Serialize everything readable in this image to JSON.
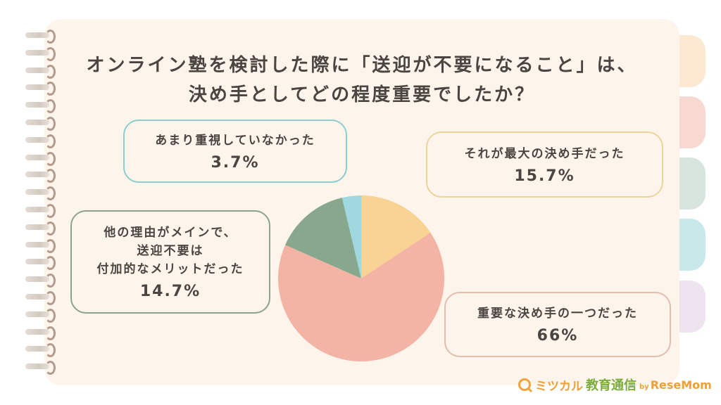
{
  "title": {
    "line1": "オンライン塾を検討した際に「送迎が不要になること」は、",
    "line2": "決め手としてどの程度重要でしたか？"
  },
  "tabs": [
    {
      "color": "#fde9d2"
    },
    {
      "color": "#f7d9d2"
    },
    {
      "color": "#d8e5df"
    },
    {
      "color": "#c9e8ea"
    },
    {
      "color": "#ede4ef"
    }
  ],
  "labels": [
    {
      "id": "not-important",
      "text": "あまり重視していなかった",
      "value": "3.7%",
      "border": "#8ccdd0"
    },
    {
      "id": "biggest-factor",
      "text": "それが最大の決め手だった",
      "value": "15.7%",
      "border": "#ecd39a"
    },
    {
      "id": "additional-merit",
      "text": "他の理由がメインで、\n送迎不要は\n付加的なメリットだった",
      "value": "14.7%",
      "border": "#8aa48e"
    },
    {
      "id": "one-of-factors",
      "text": "重要な決め手の一つだった",
      "value": "66%",
      "border": "#e3bcae"
    }
  ],
  "logo": {
    "part1": "ミツカル",
    "part2": "教育通信",
    "part3": "by",
    "part4": "ReseMom"
  },
  "chart_data": {
    "type": "pie",
    "title": "オンライン塾を検討した際に「送迎が不要になること」は、決め手としてどの程度重要でしたか？",
    "start_angle": "12 o'clock, clockwise",
    "categories": [
      "それが最大の決め手だった",
      "重要な決め手の一つだった",
      "他の理由がメインで、送迎不要は付加的なメリットだった",
      "あまり重視していなかった"
    ],
    "values": [
      15.7,
      66,
      14.7,
      3.7
    ],
    "colors": [
      "#f8d394",
      "#f3b4a5",
      "#88a88e",
      "#9fd8df"
    ],
    "legend": "callout boxes"
  }
}
